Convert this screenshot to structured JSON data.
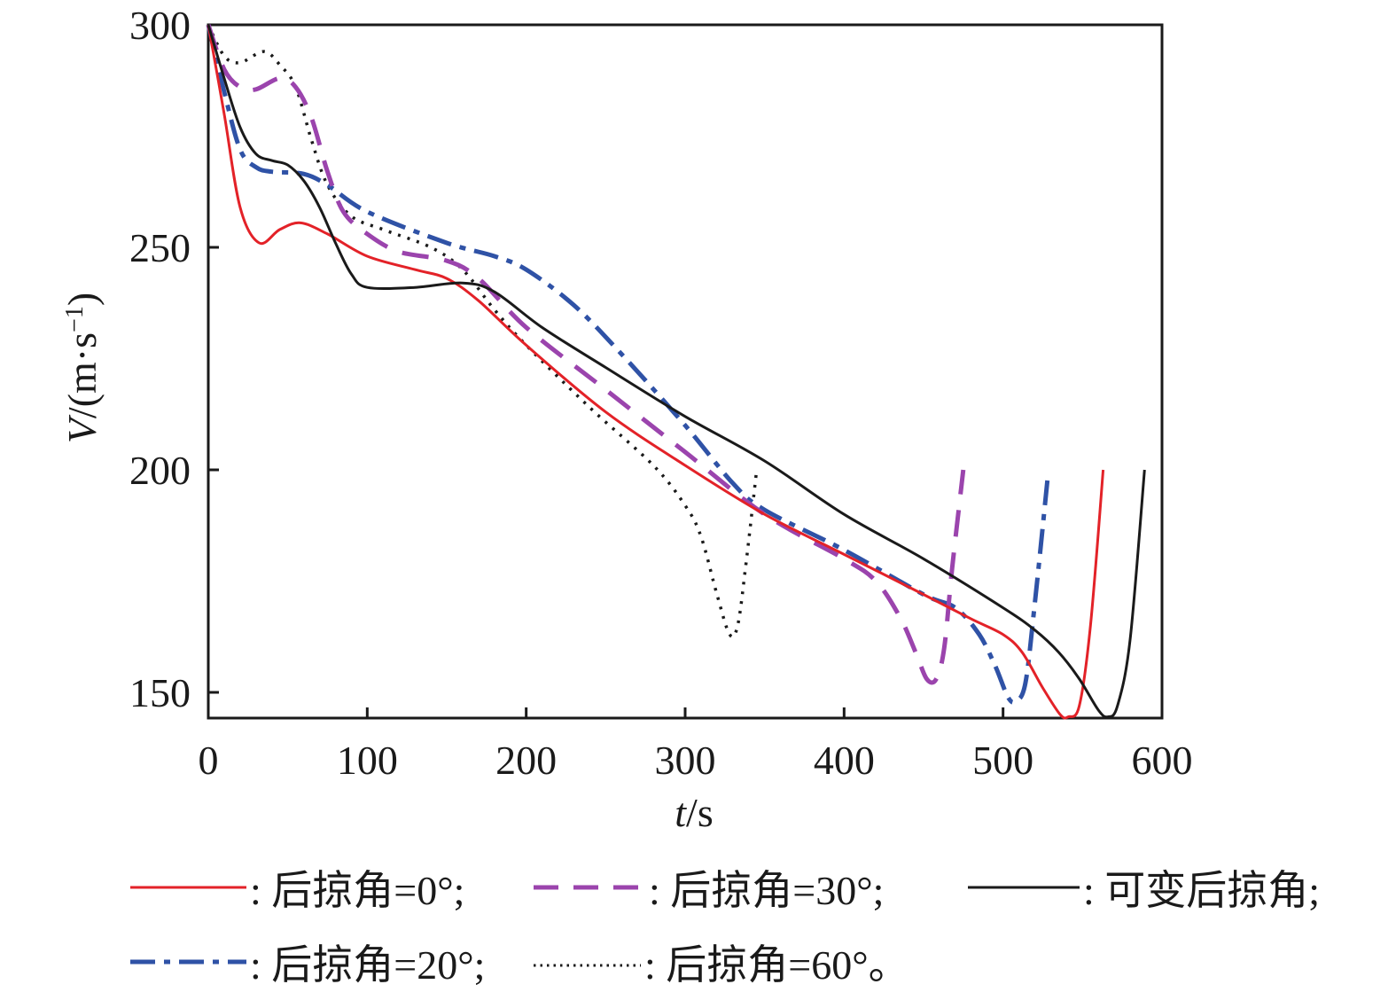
{
  "chart_data": {
    "type": "line",
    "title": "",
    "xlabel": "t/s",
    "xlabel_italic": "t",
    "xlabel_unit": "/s",
    "ylabel": "V/(m·s⁻¹)",
    "ylabel_italic": "V",
    "ylabel_unit": "/(m·s",
    "ylabel_sup": "−1",
    "ylabel_close": ")",
    "xlim": [
      0,
      600
    ],
    "ylim": [
      144,
      300
    ],
    "xticks": [
      0,
      100,
      200,
      300,
      400,
      500,
      600
    ],
    "yticks": [
      150,
      200,
      250,
      300
    ],
    "xtick_labels": [
      "0",
      "100",
      "200",
      "300",
      "400",
      "500",
      "600"
    ],
    "ytick_labels": [
      "150",
      "200",
      "250",
      "300"
    ],
    "grid": false,
    "legend_position": "bottom",
    "series": [
      {
        "name": "后掠角=0°",
        "label": ": 后掠角=0°;",
        "color": "#e32228",
        "style": "solid",
        "points": [
          [
            0,
            300
          ],
          [
            10,
            280
          ],
          [
            20,
            259
          ],
          [
            32,
            251
          ],
          [
            45,
            254
          ],
          [
            58,
            255.5
          ],
          [
            75,
            253
          ],
          [
            100,
            248
          ],
          [
            130,
            245
          ],
          [
            150,
            243
          ],
          [
            170,
            238
          ],
          [
            200,
            228
          ],
          [
            250,
            213
          ],
          [
            300,
            201
          ],
          [
            350,
            190
          ],
          [
            400,
            181
          ],
          [
            450,
            172
          ],
          [
            480,
            166.5
          ],
          [
            500,
            163
          ],
          [
            512,
            159
          ],
          [
            525,
            151
          ],
          [
            536,
            145
          ],
          [
            541,
            144.5
          ],
          [
            548,
            147
          ],
          [
            555,
            165
          ],
          [
            563,
            200
          ]
        ]
      },
      {
        "name": "后掠角=30°",
        "label": ": 后掠角=30°;",
        "color": "#9b44ad",
        "style": "dashed",
        "points": [
          [
            0,
            300
          ],
          [
            10,
            290
          ],
          [
            20,
            286
          ],
          [
            30,
            285.5
          ],
          [
            45,
            288
          ],
          [
            55,
            286
          ],
          [
            65,
            279
          ],
          [
            75,
            267
          ],
          [
            85,
            258
          ],
          [
            100,
            253
          ],
          [
            120,
            249
          ],
          [
            150,
            247
          ],
          [
            170,
            243
          ],
          [
            200,
            232
          ],
          [
            250,
            218
          ],
          [
            300,
            204
          ],
          [
            350,
            190
          ],
          [
            400,
            180
          ],
          [
            420,
            175
          ],
          [
            435,
            167
          ],
          [
            445,
            159
          ],
          [
            452,
            153
          ],
          [
            458,
            153
          ],
          [
            463,
            160
          ],
          [
            468,
            178
          ],
          [
            475,
            200
          ]
        ]
      },
      {
        "name": "可变后掠角",
        "label": ": 可变后掠角;",
        "color": "#1a1a1a",
        "style": "solid",
        "points": [
          [
            0,
            300
          ],
          [
            10,
            288
          ],
          [
            20,
            277
          ],
          [
            30,
            271
          ],
          [
            40,
            269.5
          ],
          [
            50,
            268.5
          ],
          [
            60,
            265
          ],
          [
            70,
            259
          ],
          [
            80,
            251
          ],
          [
            90,
            244
          ],
          [
            100,
            241
          ],
          [
            130,
            241
          ],
          [
            160,
            242
          ],
          [
            180,
            240
          ],
          [
            210,
            232
          ],
          [
            250,
            223
          ],
          [
            300,
            212
          ],
          [
            350,
            202
          ],
          [
            400,
            190
          ],
          [
            450,
            180
          ],
          [
            500,
            169
          ],
          [
            520,
            164
          ],
          [
            535,
            159
          ],
          [
            548,
            153
          ],
          [
            560,
            146
          ],
          [
            566,
            144.5
          ],
          [
            572,
            147
          ],
          [
            580,
            162
          ],
          [
            589,
            200
          ]
        ]
      },
      {
        "name": "后掠角=20°",
        "label": ": 后掠角=20°;",
        "color": "#2f52a6",
        "style": "dash-dot",
        "points": [
          [
            0,
            300
          ],
          [
            10,
            285
          ],
          [
            20,
            272
          ],
          [
            30,
            268
          ],
          [
            40,
            267
          ],
          [
            60,
            266.5
          ],
          [
            75,
            264
          ],
          [
            100,
            258
          ],
          [
            150,
            251
          ],
          [
            180,
            248
          ],
          [
            200,
            245
          ],
          [
            230,
            237
          ],
          [
            260,
            226
          ],
          [
            300,
            210
          ],
          [
            330,
            197
          ],
          [
            350,
            191
          ],
          [
            400,
            182
          ],
          [
            450,
            172
          ],
          [
            470,
            169
          ],
          [
            485,
            163
          ],
          [
            495,
            156
          ],
          [
            503,
            149
          ],
          [
            508,
            148
          ],
          [
            514,
            152
          ],
          [
            520,
            170
          ],
          [
            528,
            198
          ]
        ]
      },
      {
        "name": "后掠角=60°",
        "label": ": 后掠角=60°。",
        "color": "#1a1a1a",
        "style": "dotted",
        "points": [
          [
            0,
            300
          ],
          [
            10,
            293
          ],
          [
            20,
            291.5
          ],
          [
            35,
            294
          ],
          [
            45,
            291
          ],
          [
            55,
            286
          ],
          [
            65,
            274
          ],
          [
            75,
            264
          ],
          [
            90,
            257
          ],
          [
            110,
            254
          ],
          [
            140,
            250
          ],
          [
            160,
            245
          ],
          [
            180,
            236
          ],
          [
            200,
            228
          ],
          [
            240,
            214
          ],
          [
            280,
            201
          ],
          [
            300,
            192
          ],
          [
            310,
            185
          ],
          [
            320,
            172
          ],
          [
            328,
            163
          ],
          [
            333,
            165
          ],
          [
            338,
            178
          ],
          [
            345,
            200
          ]
        ]
      }
    ]
  }
}
